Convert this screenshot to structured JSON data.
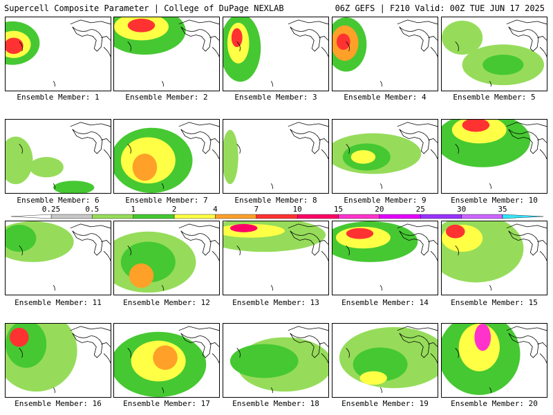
{
  "header": {
    "title_left": "Supercell Composite Parameter | College of DuPage NEXLAB",
    "title_right": "06Z GEFS | F210 Valid: 00Z TUE JUN 17 2025"
  },
  "legend": {
    "ticks": [
      "0.25",
      "0.5",
      "1",
      "2",
      "4",
      "7",
      "10",
      "15",
      "20",
      "25",
      "30",
      "35"
    ],
    "colors": [
      "#c8c8c8",
      "#96dc5a",
      "#46c832",
      "#ffff46",
      "#ffa028",
      "#ff3232",
      "#ff0066",
      "#ff33cc",
      "#e600ff",
      "#9933ff",
      "#cc66ff",
      "#33e6ff"
    ]
  },
  "members": [
    {
      "label": "Ensemble Member: 1"
    },
    {
      "label": "Ensemble Member: 2"
    },
    {
      "label": "Ensemble Member: 3"
    },
    {
      "label": "Ensemble Member: 4"
    },
    {
      "label": "Ensemble Member: 5"
    },
    {
      "label": "Ensemble Member: 6"
    },
    {
      "label": "Ensemble Member: 7"
    },
    {
      "label": "Ensemble Member: 8"
    },
    {
      "label": "Ensemble Member: 9"
    },
    {
      "label": "Ensemble Member: 10"
    },
    {
      "label": "Ensemble Member: 11"
    },
    {
      "label": "Ensemble Member: 12"
    },
    {
      "label": "Ensemble Member: 13"
    },
    {
      "label": "Ensemble Member: 14"
    },
    {
      "label": "Ensemble Member: 15"
    },
    {
      "label": "Ensemble Member: 16"
    },
    {
      "label": "Ensemble Member: 17"
    },
    {
      "label": "Ensemble Member: 18"
    },
    {
      "label": "Ensemble Member: 19"
    },
    {
      "label": "Ensemble Member: 20"
    }
  ]
}
